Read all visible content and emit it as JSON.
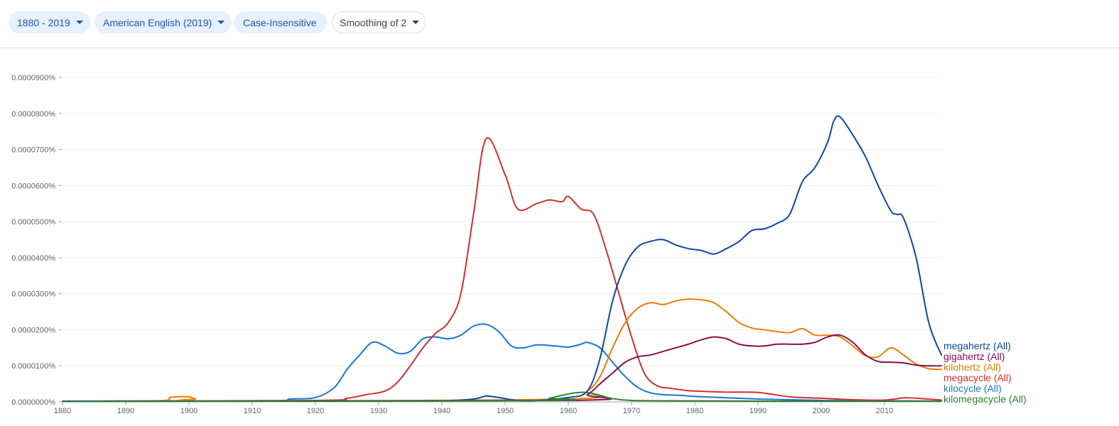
{
  "toolbar": {
    "range_label": "1880 - 2019",
    "corpus_label": "American English (2019)",
    "case_label": "Case-Insensitive",
    "smoothing_label": "Smoothing of 2"
  },
  "chart_data": {
    "type": "line",
    "title": "",
    "xlabel": "",
    "ylabel": "",
    "xlim": [
      1880,
      2019
    ],
    "ylim": [
      0,
      9e-07
    ],
    "grid": true,
    "legend": "right, at line ends",
    "x_ticks": [
      1880,
      1890,
      1900,
      1910,
      1920,
      1930,
      1940,
      1950,
      1960,
      1970,
      1980,
      1990,
      2000,
      2010
    ],
    "y_ticks": [
      {
        "value": 9e-07,
        "label": "0.0000900%"
      },
      {
        "value": 8e-07,
        "label": "0.0000800%"
      },
      {
        "value": 7e-07,
        "label": "0.0000700%"
      },
      {
        "value": 6e-07,
        "label": "0.0000600%"
      },
      {
        "value": 5e-07,
        "label": "0.0000500%"
      },
      {
        "value": 4e-07,
        "label": "0.0000400%"
      },
      {
        "value": 3e-07,
        "label": "0.0000300%"
      },
      {
        "value": 2e-07,
        "label": "0.0000200%"
      },
      {
        "value": 1e-07,
        "label": "0.0000100%"
      },
      {
        "value": 0,
        "label": "0.0000000%"
      }
    ],
    "series": [
      {
        "name": "megahertz (All)",
        "color": "#0d47a1",
        "x": [
          1880,
          1900,
          1930,
          1940,
          1945,
          1947,
          1949,
          1952,
          1955,
          1960,
          1963,
          1965,
          1967,
          1969,
          1971,
          1973,
          1975,
          1977,
          1979,
          1981,
          1983,
          1985,
          1987,
          1989,
          1991,
          1993,
          1995,
          1997,
          1999,
          2001,
          2002,
          2003,
          2005,
          2007,
          2009,
          2011,
          2012,
          2013,
          2015,
          2017,
          2019
        ],
        "y": [
          2e-09,
          2e-09,
          3e-09,
          3e-09,
          8e-09,
          1.6e-08,
          1.2e-08,
          4e-09,
          4e-09,
          1.2e-08,
          3e-08,
          1.2e-07,
          2.8e-07,
          3.8e-07,
          4.3e-07,
          4.45e-07,
          4.5e-07,
          4.35e-07,
          4.25e-07,
          4.2e-07,
          4.1e-07,
          4.25e-07,
          4.45e-07,
          4.75e-07,
          4.8e-07,
          4.95e-07,
          5.2e-07,
          6.1e-07,
          6.5e-07,
          7.2e-07,
          7.8e-07,
          7.9e-07,
          7.4e-07,
          6.8e-07,
          6e-07,
          5.3e-07,
          5.2e-07,
          5.1e-07,
          4e-07,
          2.2e-07,
          1.3e-07
        ]
      },
      {
        "name": "gigahertz (All)",
        "color": "#880e4f",
        "x": [
          1880,
          1960,
          1963,
          1965,
          1967,
          1969,
          1971,
          1973,
          1975,
          1977,
          1979,
          1981,
          1983,
          1985,
          1987,
          1989,
          1991,
          1993,
          1995,
          1997,
          1999,
          2001,
          2003,
          2005,
          2007,
          2009,
          2011,
          2013,
          2015,
          2017,
          2019
        ],
        "y": [
          2e-09,
          4e-09,
          2e-08,
          5e-08,
          8e-08,
          1.1e-07,
          1.25e-07,
          1.3e-07,
          1.4e-07,
          1.5e-07,
          1.6e-07,
          1.72e-07,
          1.8e-07,
          1.75e-07,
          1.6e-07,
          1.55e-07,
          1.55e-07,
          1.6e-07,
          1.6e-07,
          1.6e-07,
          1.65e-07,
          1.8e-07,
          1.85e-07,
          1.65e-07,
          1.3e-07,
          1.12e-07,
          1.1e-07,
          1.08e-07,
          1.02e-07,
          1e-07,
          1e-07
        ]
      },
      {
        "name": "kilohertz (All)",
        "color": "#ef7c00",
        "x": [
          1880,
          1895,
          1897,
          1898,
          1900,
          1901,
          1903,
          1960,
          1963,
          1965,
          1967,
          1969,
          1971,
          1973,
          1975,
          1977,
          1979,
          1981,
          1983,
          1985,
          1987,
          1989,
          1991,
          1993,
          1995,
          1997,
          1999,
          2001,
          2003,
          2005,
          2007,
          2009,
          2011,
          2013,
          2015,
          2017,
          2019
        ],
        "y": [
          2e-09,
          3e-09,
          1.2e-08,
          1.4e-08,
          1.4e-08,
          8e-09,
          3e-09,
          8e-09,
          3e-08,
          7e-08,
          1.5e-07,
          2.2e-07,
          2.6e-07,
          2.75e-07,
          2.7e-07,
          2.8e-07,
          2.85e-07,
          2.83e-07,
          2.75e-07,
          2.5e-07,
          2.2e-07,
          2.05e-07,
          2e-07,
          1.95e-07,
          1.92e-07,
          2.03e-07,
          1.85e-07,
          1.85e-07,
          1.8e-07,
          1.55e-07,
          1.28e-07,
          1.25e-07,
          1.5e-07,
          1.3e-07,
          1.05e-07,
          9.2e-08,
          9e-08
        ]
      },
      {
        "name": "megacycle (All)",
        "color": "#d32f2f",
        "x": [
          1880,
          1920,
          1925,
          1928,
          1931,
          1933,
          1935,
          1937,
          1939,
          1941,
          1943,
          1945,
          1947,
          1950,
          1952,
          1955,
          1957,
          1959,
          1960,
          1962,
          1964,
          1966,
          1968,
          1970,
          1972,
          1974,
          1976,
          1978,
          1980,
          1985,
          1990,
          1995,
          2000,
          2005,
          2010,
          2013,
          2015,
          2019
        ],
        "y": [
          2e-09,
          4e-09,
          1e-08,
          2e-08,
          3e-08,
          5.5e-08,
          1e-07,
          1.5e-07,
          1.9e-07,
          2.2e-07,
          3e-07,
          5.2e-07,
          7.3e-07,
          6.3e-07,
          5.35e-07,
          5.5e-07,
          5.6e-07,
          5.55e-07,
          5.7e-07,
          5.35e-07,
          5.2e-07,
          4.2e-07,
          3e-07,
          1.8e-07,
          8e-08,
          4.5e-08,
          3.8e-08,
          3.3e-08,
          3e-08,
          2.7e-08,
          2.6e-08,
          1.4e-08,
          1e-08,
          6e-09,
          5e-09,
          1.1e-08,
          1e-08,
          5e-09
        ]
      },
      {
        "name": "kilocycle (All)",
        "color": "#1976d2",
        "x": [
          1880,
          1912,
          1916,
          1920,
          1923,
          1925,
          1927,
          1929,
          1931,
          1933,
          1935,
          1937,
          1939,
          1941,
          1943,
          1945,
          1947,
          1949,
          1951,
          1953,
          1955,
          1958,
          1960,
          1962,
          1963,
          1965,
          1967,
          1969,
          1971,
          1973,
          1975,
          1978,
          1980,
          1990,
          2000,
          2010,
          2019
        ],
        "y": [
          2e-09,
          3e-09,
          8e-09,
          1.2e-08,
          4e-08,
          9e-08,
          1.3e-07,
          1.65e-07,
          1.55e-07,
          1.35e-07,
          1.4e-07,
          1.75e-07,
          1.8e-07,
          1.75e-07,
          1.85e-07,
          2.1e-07,
          2.15e-07,
          1.95e-07,
          1.55e-07,
          1.5e-07,
          1.58e-07,
          1.55e-07,
          1.52e-07,
          1.6e-07,
          1.65e-07,
          1.5e-07,
          1.1e-07,
          7e-08,
          4e-08,
          2.5e-08,
          2e-08,
          1.8e-08,
          1.5e-08,
          8e-09,
          4e-09,
          3e-09,
          2e-09
        ]
      },
      {
        "name": "kilomegacycle (All)",
        "color": "#2e7d32",
        "x": [
          1880,
          1955,
          1957,
          1959,
          1961,
          1963,
          1965,
          1967,
          1970,
          1975,
          1990,
          2019
        ],
        "y": [
          1e-09,
          4e-09,
          1e-08,
          1.8e-08,
          2.5e-08,
          2.6e-08,
          1.8e-08,
          9e-09,
          4e-09,
          3e-09,
          2e-09,
          2e-09
        ]
      }
    ]
  }
}
